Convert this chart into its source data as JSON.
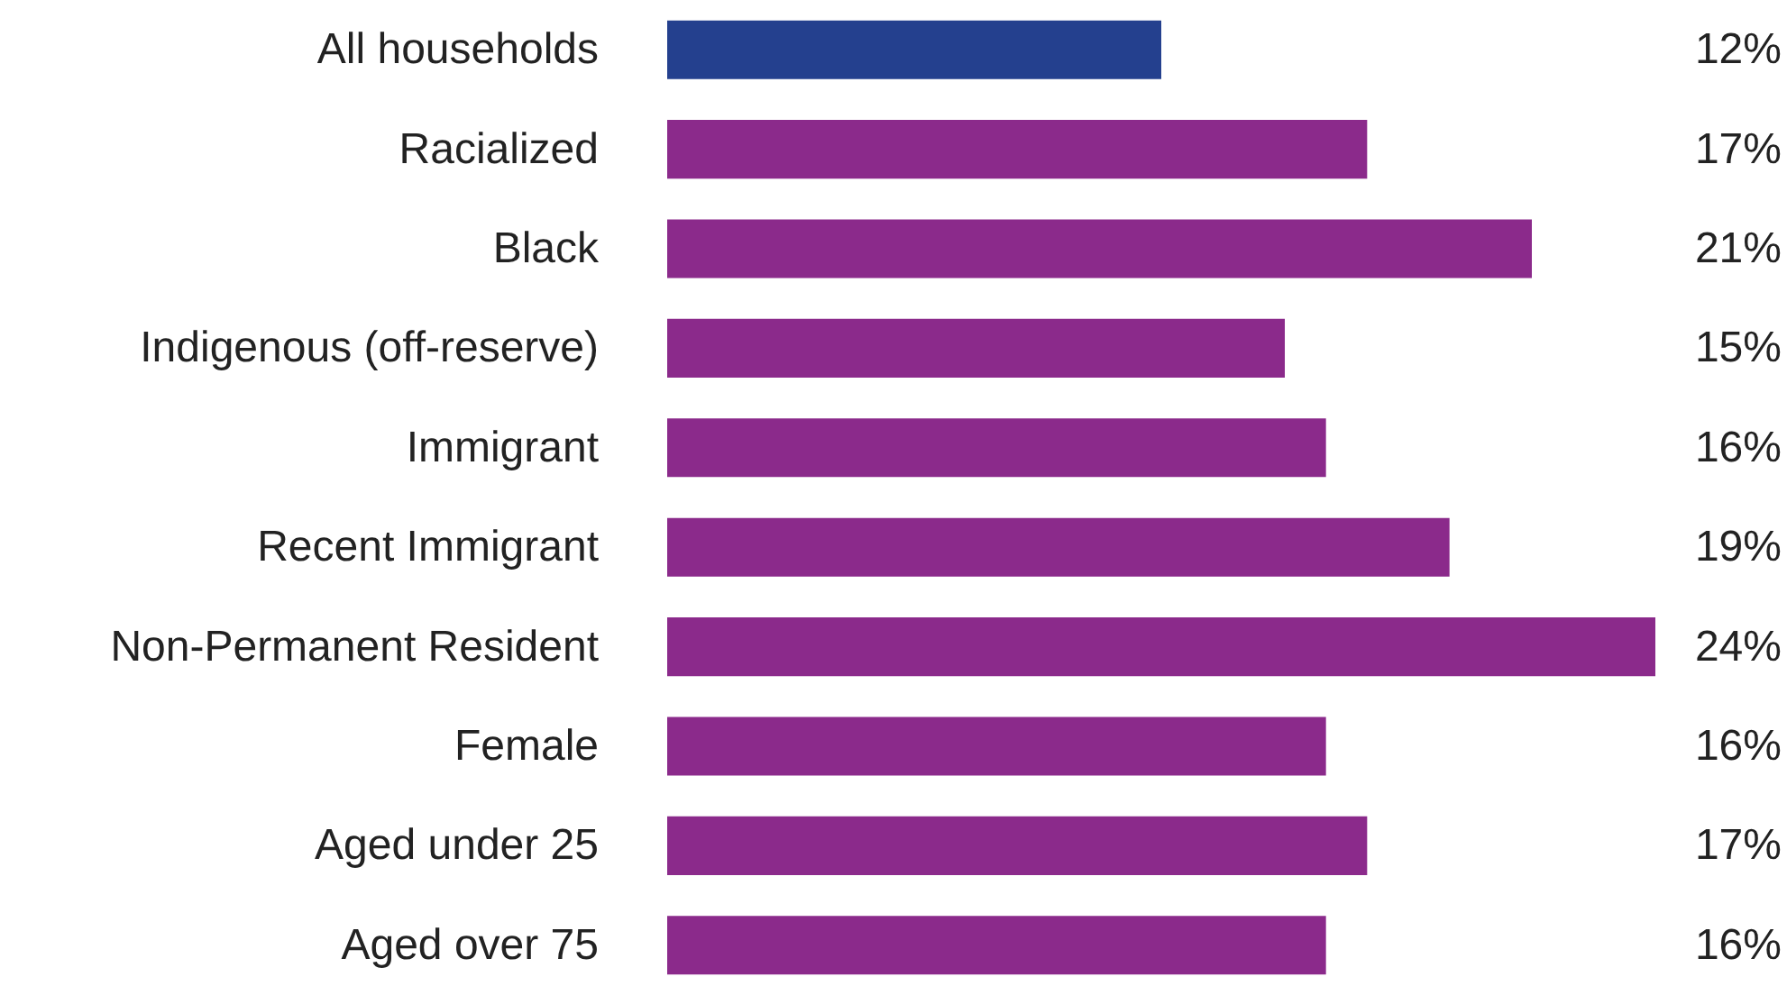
{
  "chart_data": {
    "type": "bar",
    "orientation": "horizontal",
    "categories": [
      "All households",
      "Racialized",
      "Black",
      "Indigenous (off-reserve)",
      "Immigrant",
      "Recent Immigrant",
      "Non-Permanent Resident",
      "Female",
      "Aged under 25",
      "Aged over 75"
    ],
    "values": [
      12,
      17,
      21,
      15,
      16,
      19,
      24,
      16,
      17,
      16
    ],
    "value_labels": [
      "12%",
      "17%",
      "21%",
      "15%",
      "16%",
      "19%",
      "24%",
      "16%",
      "17%",
      "16%"
    ],
    "colors": [
      "#24408e",
      "#8b2a8b",
      "#8b2a8b",
      "#8b2a8b",
      "#8b2a8b",
      "#8b2a8b",
      "#8b2a8b",
      "#8b2a8b",
      "#8b2a8b",
      "#8b2a8b"
    ]
  }
}
